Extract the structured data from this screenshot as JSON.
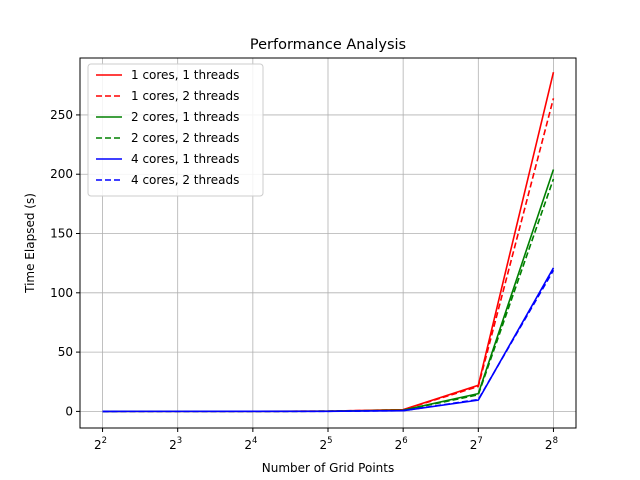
{
  "chart_data": {
    "type": "line",
    "title": "Performance Analysis",
    "xlabel": "Number of Grid Points",
    "ylabel": "Time Elapsed (s)",
    "x_scale": "log2",
    "x": [
      4,
      8,
      16,
      32,
      64,
      128,
      256
    ],
    "x_tick_labels": [
      {
        "base": "2",
        "exp": "2"
      },
      {
        "base": "2",
        "exp": "3"
      },
      {
        "base": "2",
        "exp": "4"
      },
      {
        "base": "2",
        "exp": "5"
      },
      {
        "base": "2",
        "exp": "6"
      },
      {
        "base": "2",
        "exp": "7"
      },
      {
        "base": "2",
        "exp": "8"
      }
    ],
    "y_ticks": [
      0,
      50,
      100,
      150,
      200,
      250
    ],
    "ylim": [
      -14,
      298
    ],
    "grid": true,
    "legend_position": "upper-left",
    "series": [
      {
        "name": "1 cores, 1 threads",
        "color": "#ff0000",
        "dash": "solid",
        "values": [
          0.01,
          0.02,
          0.05,
          0.2,
          1.5,
          22,
          286
        ]
      },
      {
        "name": "1 cores, 2 threads",
        "color": "#ff0000",
        "dash": "dashed",
        "values": [
          0.01,
          0.02,
          0.05,
          0.2,
          1.4,
          21,
          264
        ]
      },
      {
        "name": "2 cores, 1 threads",
        "color": "#008000",
        "dash": "solid",
        "values": [
          0.01,
          0.02,
          0.04,
          0.15,
          1.0,
          15,
          204
        ]
      },
      {
        "name": "2 cores, 2 threads",
        "color": "#008000",
        "dash": "dashed",
        "values": [
          0.01,
          0.02,
          0.04,
          0.15,
          0.9,
          14,
          196
        ]
      },
      {
        "name": "4 cores, 1 threads",
        "color": "#0000ff",
        "dash": "solid",
        "values": [
          0.01,
          0.02,
          0.03,
          0.1,
          0.6,
          9.5,
          121
        ]
      },
      {
        "name": "4 cores, 2 threads",
        "color": "#0000ff",
        "dash": "dashed",
        "values": [
          0.01,
          0.02,
          0.03,
          0.1,
          0.6,
          10,
          119
        ]
      }
    ]
  }
}
